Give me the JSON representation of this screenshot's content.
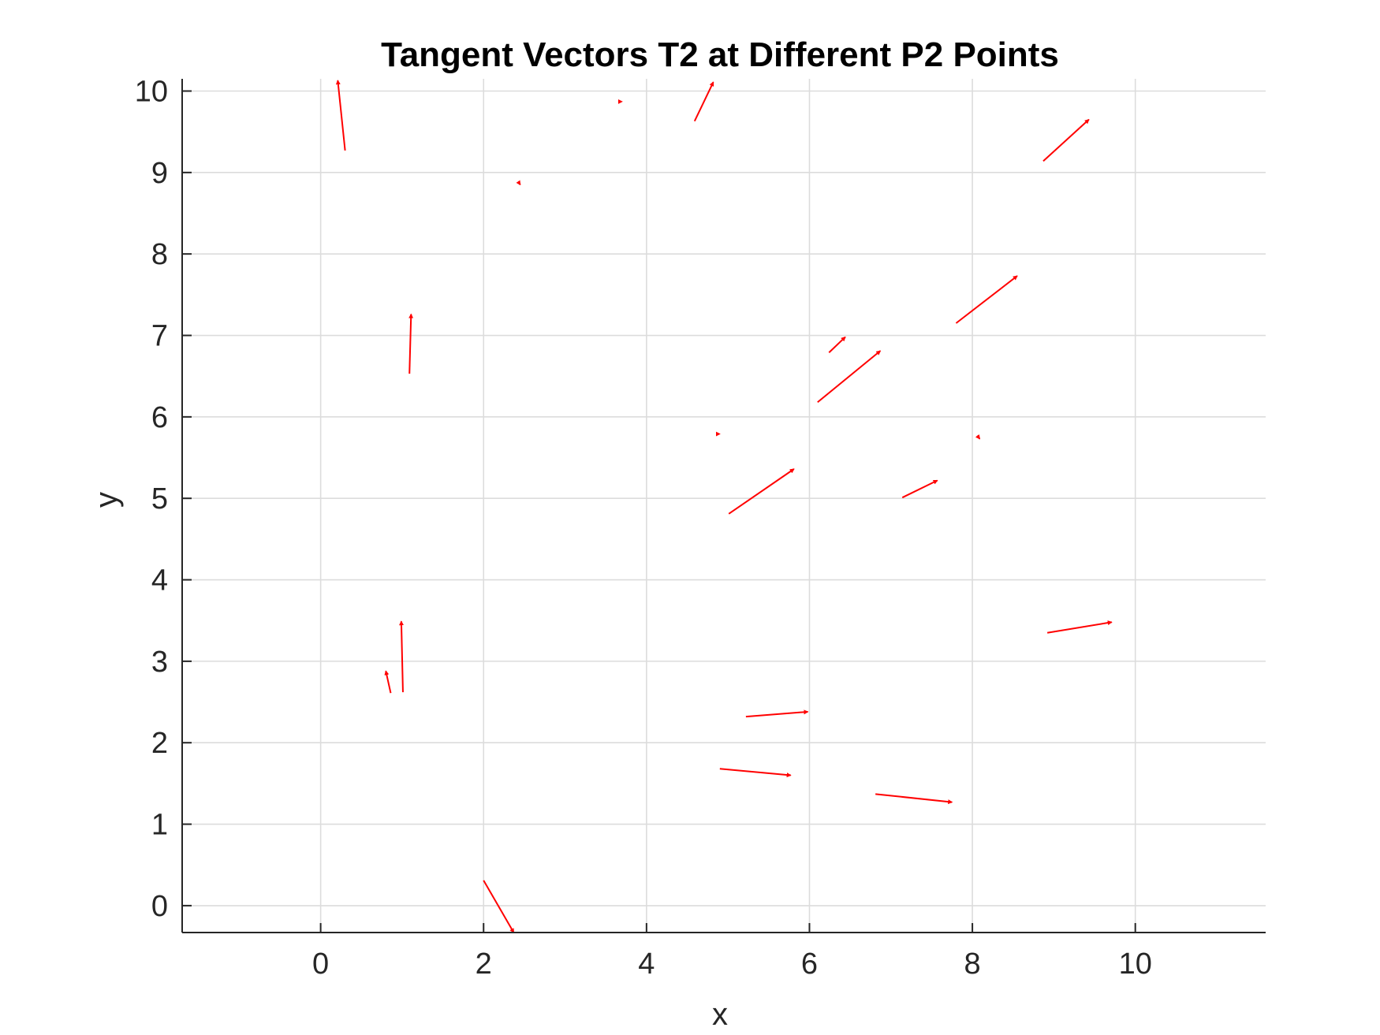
{
  "chart_data": {
    "type": "quiver",
    "title": "Tangent Vectors T2 at Different P2 Points",
    "xlabel": "x",
    "ylabel": "y",
    "xlim": [
      -1.7,
      11.6
    ],
    "ylim": [
      -0.33,
      10.15
    ],
    "xticks": [
      0,
      2,
      4,
      6,
      8,
      10
    ],
    "yticks": [
      0,
      1,
      2,
      3,
      4,
      5,
      6,
      7,
      8,
      9,
      10
    ],
    "grid": true,
    "color": "#ff0000",
    "vectors": [
      {
        "x": 0.3,
        "y": 9.27,
        "u": -0.09,
        "v": 0.86
      },
      {
        "x": 2.43,
        "y": 8.88,
        "u": 0.02,
        "v": -0.03
      },
      {
        "x": 3.7,
        "y": 9.87,
        "u": 0.0,
        "v": 0.0
      },
      {
        "x": 4.59,
        "y": 9.63,
        "u": 0.23,
        "v": 0.48
      },
      {
        "x": 8.87,
        "y": 9.14,
        "u": 0.56,
        "v": 0.51
      },
      {
        "x": 1.09,
        "y": 6.53,
        "u": 0.02,
        "v": 0.73
      },
      {
        "x": 7.8,
        "y": 7.15,
        "u": 0.75,
        "v": 0.58
      },
      {
        "x": 6.24,
        "y": 6.79,
        "u": 0.2,
        "v": 0.19
      },
      {
        "x": 6.1,
        "y": 6.18,
        "u": 0.77,
        "v": 0.63
      },
      {
        "x": 4.9,
        "y": 5.79,
        "u": 0.0,
        "v": 0.0
      },
      {
        "x": 8.06,
        "y": 5.77,
        "u": 0.03,
        "v": -0.04
      },
      {
        "x": 5.01,
        "y": 4.81,
        "u": 0.8,
        "v": 0.55
      },
      {
        "x": 7.14,
        "y": 5.01,
        "u": 0.43,
        "v": 0.21
      },
      {
        "x": 8.92,
        "y": 3.35,
        "u": 0.79,
        "v": 0.13
      },
      {
        "x": 0.86,
        "y": 2.61,
        "u": -0.06,
        "v": 0.27
      },
      {
        "x": 1.01,
        "y": 2.62,
        "u": -0.02,
        "v": 0.87
      },
      {
        "x": 5.22,
        "y": 2.32,
        "u": 0.76,
        "v": 0.06
      },
      {
        "x": 4.9,
        "y": 1.68,
        "u": 0.87,
        "v": -0.08
      },
      {
        "x": 6.81,
        "y": 1.37,
        "u": 0.94,
        "v": -0.1
      },
      {
        "x": 2.0,
        "y": 0.31,
        "u": 0.37,
        "v": -0.64
      }
    ]
  }
}
